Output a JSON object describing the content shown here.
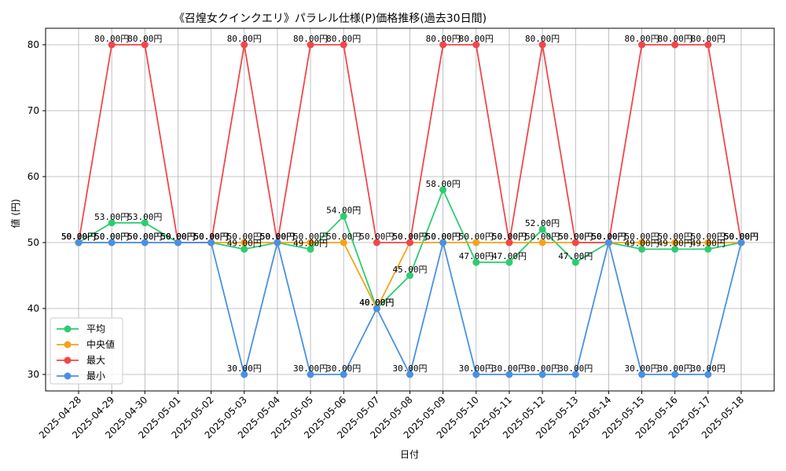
{
  "chart_data": {
    "type": "line",
    "title": "《召煌女クインクエリ》パラレル仕様(P)価格推移(過去30日間)",
    "xlabel": "日付",
    "ylabel": "値 (円)",
    "ylim": [
      27.5,
      82.5
    ],
    "yticks": [
      30,
      40,
      50,
      60,
      70,
      80
    ],
    "grid": true,
    "legend_position": "lower-left",
    "label_suffix": "円",
    "categories": [
      "2025-04-28",
      "2025-04-29",
      "2025-04-30",
      "2025-05-01",
      "2025-05-02",
      "2025-05-03",
      "2025-05-04",
      "2025-05-05",
      "2025-05-06",
      "2025-05-07",
      "2025-05-08",
      "2025-05-09",
      "2025-05-10",
      "2025-05-11",
      "2025-05-12",
      "2025-05-13",
      "2025-05-14",
      "2025-05-15",
      "2025-05-16",
      "2025-05-17",
      "2025-05-18"
    ],
    "series": [
      {
        "name": "平均",
        "color": "#2ecc71",
        "values": [
          50,
          53,
          53,
          50,
          50,
          49,
          50,
          49,
          54,
          40,
          45,
          58,
          47,
          47,
          52,
          47,
          50,
          49,
          49,
          49,
          50
        ]
      },
      {
        "name": "中央値",
        "color": "#f5a31a",
        "values": [
          50,
          50,
          50,
          50,
          50,
          50,
          50,
          50,
          50,
          40,
          50,
          50,
          50,
          50,
          50,
          50,
          50,
          50,
          50,
          50,
          50
        ]
      },
      {
        "name": "最大",
        "color": "#f0474b",
        "values": [
          50,
          80,
          80,
          50,
          50,
          80,
          50,
          80,
          80,
          50,
          50,
          80,
          80,
          50,
          80,
          50,
          50,
          80,
          80,
          80,
          50
        ]
      },
      {
        "name": "最小",
        "color": "#4a90e2",
        "values": [
          50,
          50,
          50,
          50,
          50,
          30,
          50,
          30,
          30,
          40,
          30,
          50,
          30,
          30,
          30,
          30,
          50,
          30,
          30,
          30,
          50
        ]
      }
    ]
  }
}
